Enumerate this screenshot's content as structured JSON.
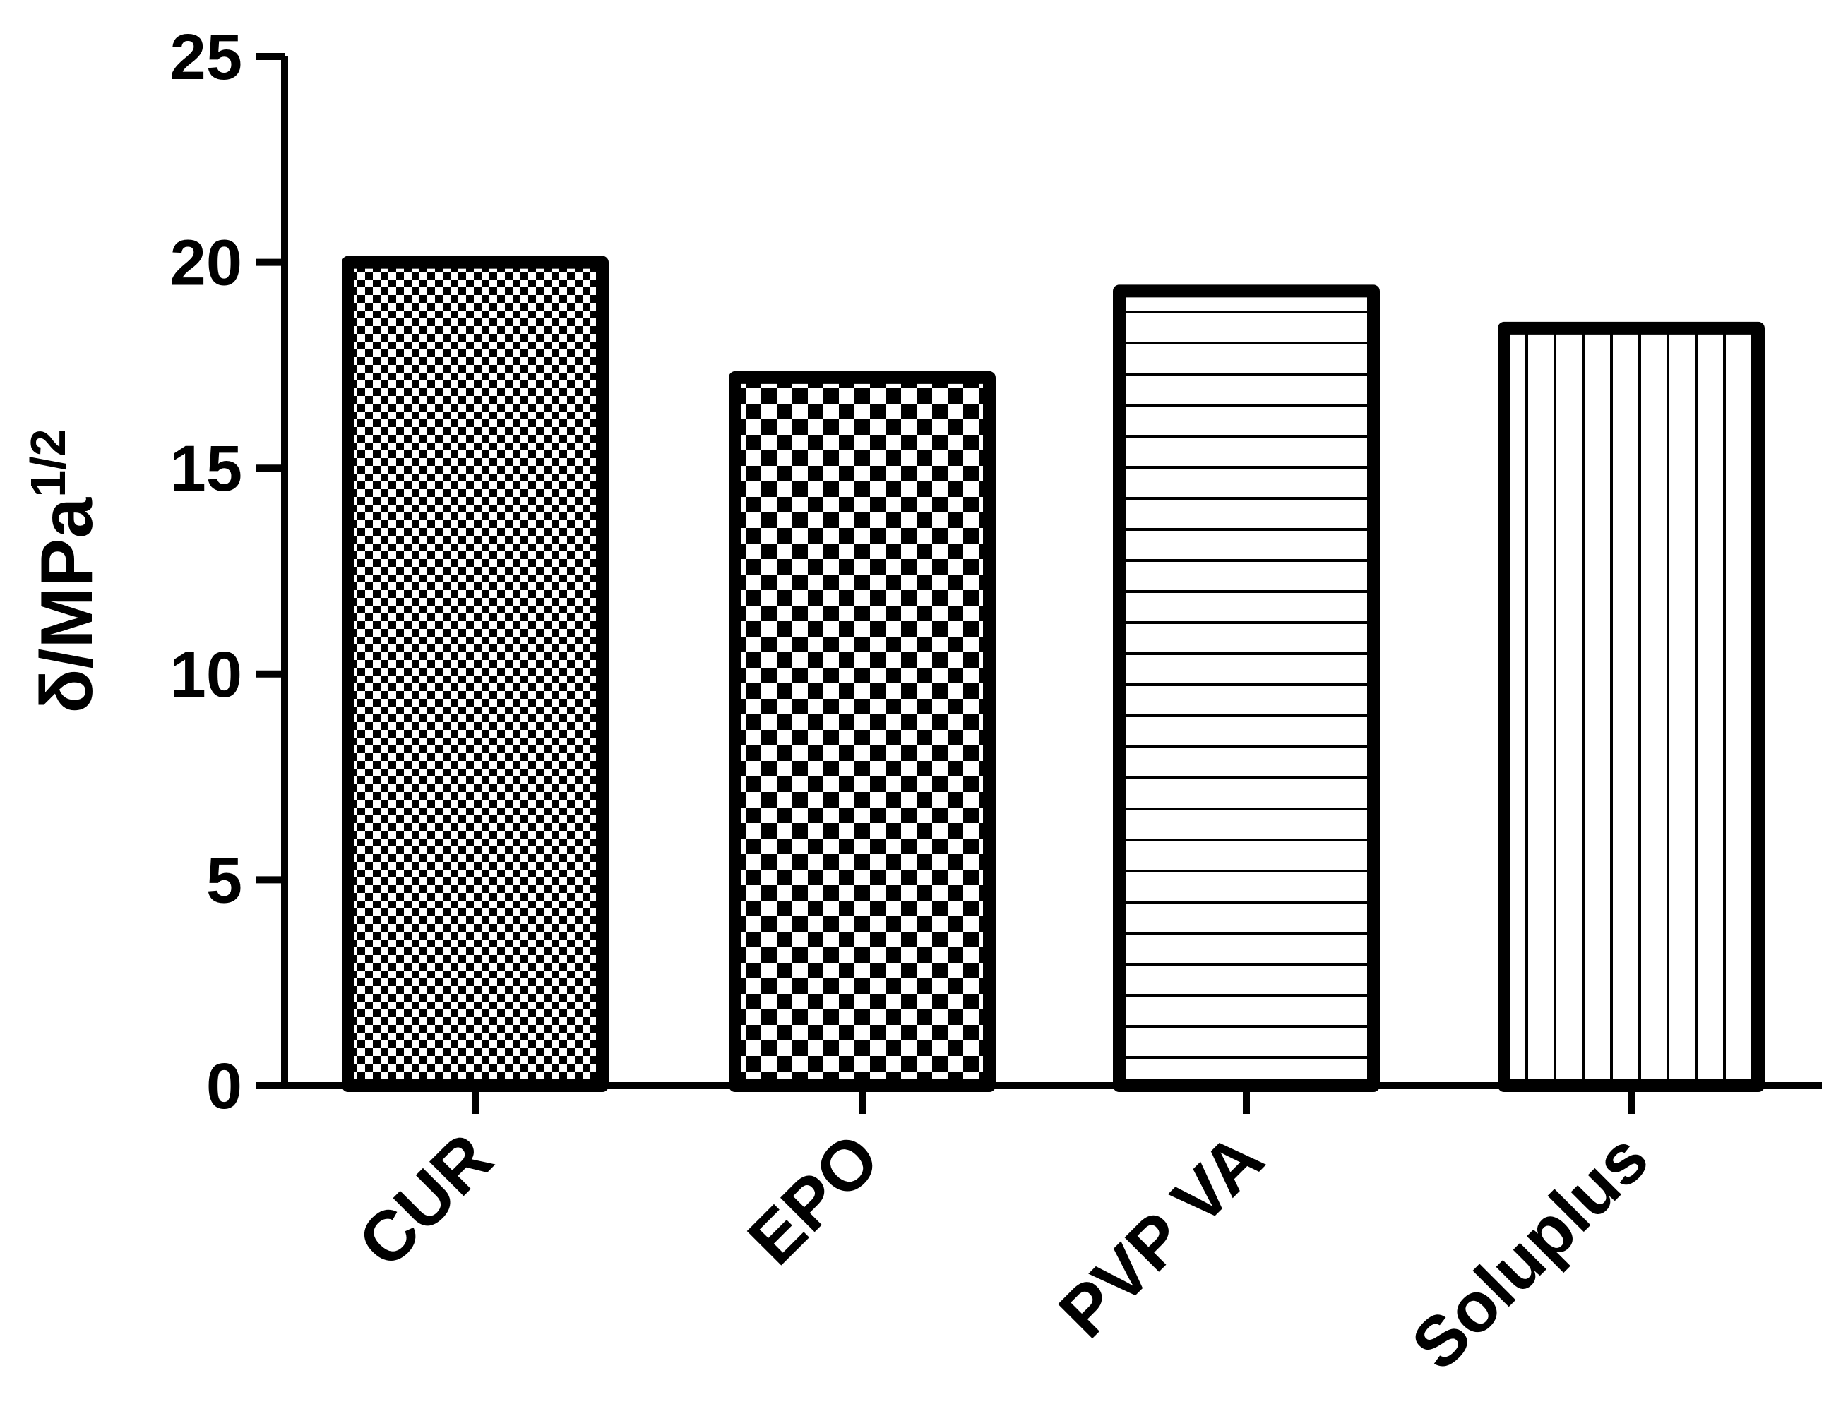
{
  "chart_data": {
    "type": "bar",
    "categories": [
      "CUR",
      "EPO",
      "PVP VA",
      "Soluplus"
    ],
    "values": [
      20.0,
      17.2,
      19.3,
      18.4
    ],
    "patterns": [
      "fine-checker",
      "checker",
      "horizontal-lines",
      "vertical-lines"
    ],
    "ylabel_main": "δ/MPa",
    "ylabel_sup": "1/2",
    "ylim": [
      0,
      25
    ],
    "yticks": [
      0,
      5,
      10,
      15,
      20,
      25
    ],
    "grid": false,
    "colors": {
      "bar_edge": "#000000",
      "fill": "#ffffff",
      "axis": "#000000"
    }
  }
}
